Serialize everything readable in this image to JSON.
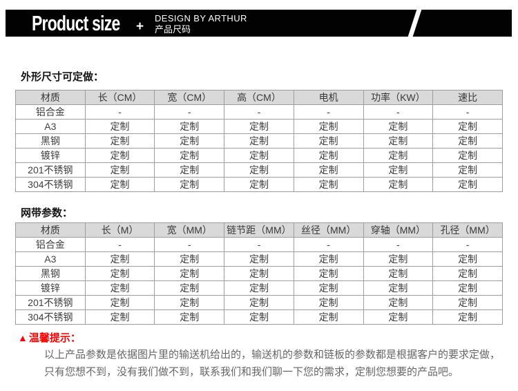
{
  "header": {
    "title": "Product size",
    "plus": "+",
    "subtitle_en": "DESIGN BY ARTHUR",
    "subtitle_cn": "产品尺码"
  },
  "sections": {
    "dimensions_title": "外形尺寸可定做：",
    "belt_title": "网带参数："
  },
  "table1": {
    "headers": [
      "材质",
      "长（CM）",
      "宽（CM）",
      "高（CM）",
      "电机",
      "功率（KW）",
      "速比"
    ],
    "rows": [
      [
        "铝合金",
        "-",
        "-",
        "-",
        "-",
        "-",
        "-"
      ],
      [
        "A3",
        "定制",
        "定制",
        "定制",
        "定制",
        "定制",
        "定制"
      ],
      [
        "黑钢",
        "定制",
        "定制",
        "定制",
        "定制",
        "定制",
        "定制"
      ],
      [
        "镀锌",
        "定制",
        "定制",
        "定制",
        "定制",
        "定制",
        "定制"
      ],
      [
        "201不锈钢",
        "定制",
        "定制",
        "定制",
        "定制",
        "定制",
        "定制"
      ],
      [
        "304不锈钢",
        "定制",
        "定制",
        "定制",
        "定制",
        "定制",
        "定制"
      ]
    ]
  },
  "table2": {
    "headers": [
      "材质",
      "长（M）",
      "宽（MM）",
      "链节距（MM）",
      "丝径（MM）",
      "穿轴（MM）",
      "孔径（MM）"
    ],
    "rows": [
      [
        "铝合金",
        "-",
        "-",
        "-",
        "-",
        "-",
        "-"
      ],
      [
        "A3",
        "定制",
        "定制",
        "定制",
        "定制",
        "定制",
        "定制"
      ],
      [
        "黑钢",
        "定制",
        "定制",
        "定制",
        "定制",
        "定制",
        "定制"
      ],
      [
        "镀锌",
        "定制",
        "定制",
        "定制",
        "定制",
        "定制",
        "定制"
      ],
      [
        "201不锈钢",
        "定制",
        "定制",
        "定制",
        "定制",
        "定制",
        "定制"
      ],
      [
        "304不锈钢",
        "定制",
        "定制",
        "定制",
        "定制",
        "定制",
        "定制"
      ]
    ]
  },
  "notice": {
    "icon": "▲",
    "title": "温馨提示：",
    "line1": "以上产品参数是依据图片里的输送机给出的，输送机的参数和链板的参数都是根据客户的要求定做，",
    "line2": "只有您想不到，没有我们做不到，联系我们和我们聊一下您的需求，定制您想要的产品吧。"
  },
  "colors": {
    "banner_bg": "#020202",
    "table_header_bg": "#d9d9d9",
    "table_border": "#9c9c9c",
    "notice_red": "#fe0000",
    "body_text_gray": "#666666"
  }
}
